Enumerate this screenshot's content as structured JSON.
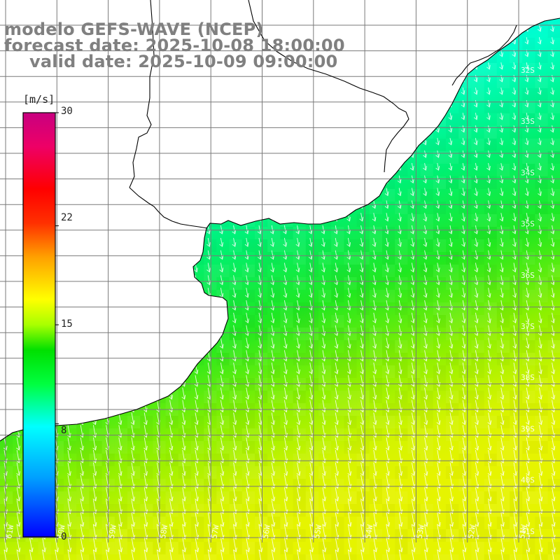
{
  "title": {
    "line1": "modelo GEFS-WAVE (NCEP)",
    "line2": "forecast date: 2025-10-08 18:00:00",
    "line3": "valid date: 2025-10-09 09:00:00"
  },
  "colorbar": {
    "unit": "[m/s]",
    "min": 0,
    "max": 30,
    "ticks": [
      {
        "label": "30",
        "value": 30
      },
      {
        "label": "22",
        "value": 22
      },
      {
        "label": "15",
        "value": 15
      },
      {
        "label": "8",
        "value": 8
      },
      {
        "label": "0",
        "value": 0
      }
    ],
    "stops": [
      "#0000ff",
      "#00a0ff",
      "#00ffff",
      "#00ff40",
      "#00e000",
      "#a8ff00",
      "#ffff00",
      "#ffa000",
      "#ff3000",
      "#ff0000",
      "#ee0066",
      "#c80080"
    ]
  },
  "map": {
    "lon_labels": [
      "61W",
      "60W",
      "59W",
      "58W",
      "57W",
      "56W",
      "55W",
      "54W",
      "53W",
      "52W",
      "51W"
    ],
    "lat_labels": [
      "32S",
      "33S",
      "34S",
      "35S",
      "36S",
      "37S",
      "38S",
      "39S",
      "40S",
      "41S"
    ],
    "wind_direction": "from north-northwest (arrows point south-southeast)",
    "land_color": "#ffffff",
    "grid_color": "#7a7a7a"
  }
}
